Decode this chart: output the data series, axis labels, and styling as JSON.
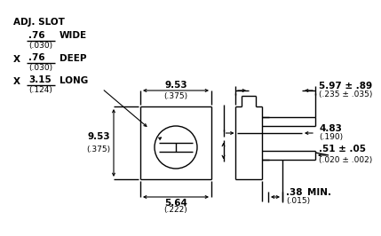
{
  "bg_color": "#ffffff",
  "line_color": "#000000",
  "adj_slot": "ADJ. SLOT",
  "wide_num": ".76",
  "wide_denom": "(.030)",
  "wide_label": "WIDE",
  "deep_num": ".76",
  "deep_denom": "(.030)",
  "deep_label": "DEEP",
  "long_num": "3.15",
  "long_denom": "(.124)",
  "long_label": "LONG",
  "dim_953_top_num": "9.53",
  "dim_953_top_den": "(.375)",
  "dim_953_left_num": "9.53",
  "dim_953_left_den": "(.375)",
  "dim_564_num": "5.64",
  "dim_564_den": "(.222)",
  "dim_597_num": "5.97 ± .89",
  "dim_597_den": "(.235 ± .035)",
  "dim_483_num": "4.83",
  "dim_483_den": "(.190)",
  "dim_051_num": ".51 ± .05",
  "dim_051_den": "(.020 ± .002)",
  "dim_038_num": ".38",
  "dim_038_den": "(.015)",
  "min_label": "MIN."
}
